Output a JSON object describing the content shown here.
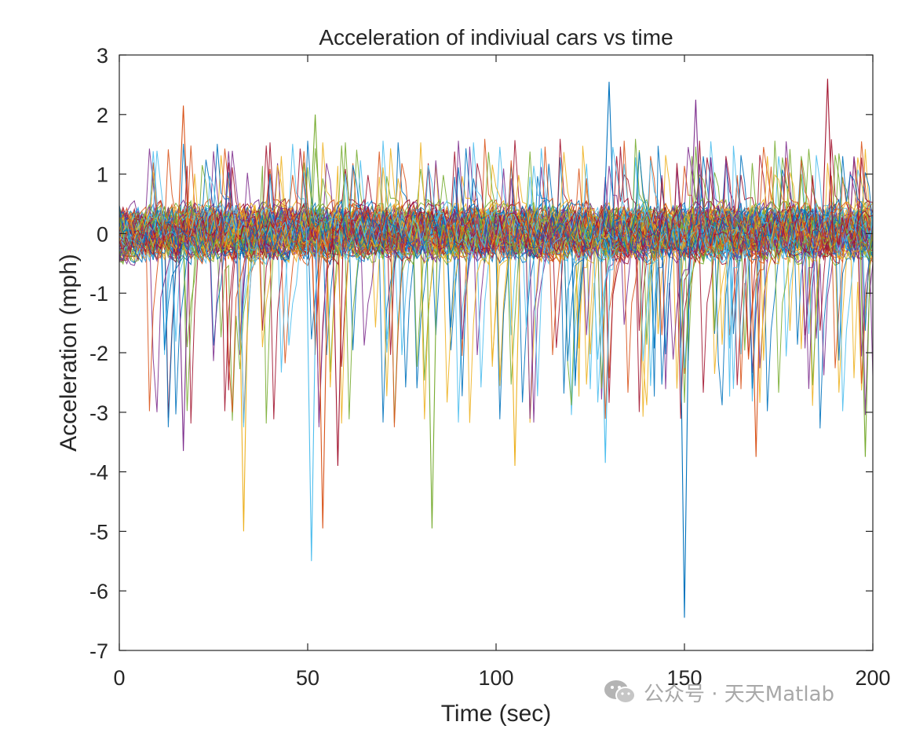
{
  "chart_data": {
    "type": "line",
    "title": "Acceleration of indiviual cars vs time",
    "xlabel": "Time (sec)",
    "ylabel": "Acceleration (mph)",
    "xlim": [
      0,
      200
    ],
    "ylim": [
      -7,
      3
    ],
    "xticks": [
      0,
      50,
      100,
      150,
      200
    ],
    "yticks": [
      3,
      2,
      1,
      0,
      -1,
      -2,
      -3,
      -4,
      -5,
      -6,
      -7
    ],
    "grid": false,
    "legend": "none",
    "n_series_approx": 100,
    "colors": [
      "#0072BD",
      "#D95319",
      "#EDB120",
      "#7E2F8E",
      "#77AC30",
      "#4DBEEE",
      "#A2142F"
    ],
    "notable_points": [
      {
        "x": 17,
        "y": 2.15
      },
      {
        "x": 52,
        "y": 2.0
      },
      {
        "x": 130,
        "y": 2.55
      },
      {
        "x": 153,
        "y": 2.25
      },
      {
        "x": 188,
        "y": 2.6
      },
      {
        "x": 33,
        "y": -5.0
      },
      {
        "x": 51,
        "y": -5.5
      },
      {
        "x": 54,
        "y": -4.95
      },
      {
        "x": 83,
        "y": -4.95
      },
      {
        "x": 150,
        "y": -6.45
      },
      {
        "x": 17,
        "y": -3.65
      },
      {
        "x": 58,
        "y": -3.9
      },
      {
        "x": 105,
        "y": -3.9
      },
      {
        "x": 129,
        "y": -3.85
      },
      {
        "x": 169,
        "y": -3.75
      },
      {
        "x": 198,
        "y": -3.75
      }
    ]
  },
  "watermark": {
    "icon": "wechat-icon",
    "text": "公众号 · 天天Matlab"
  }
}
